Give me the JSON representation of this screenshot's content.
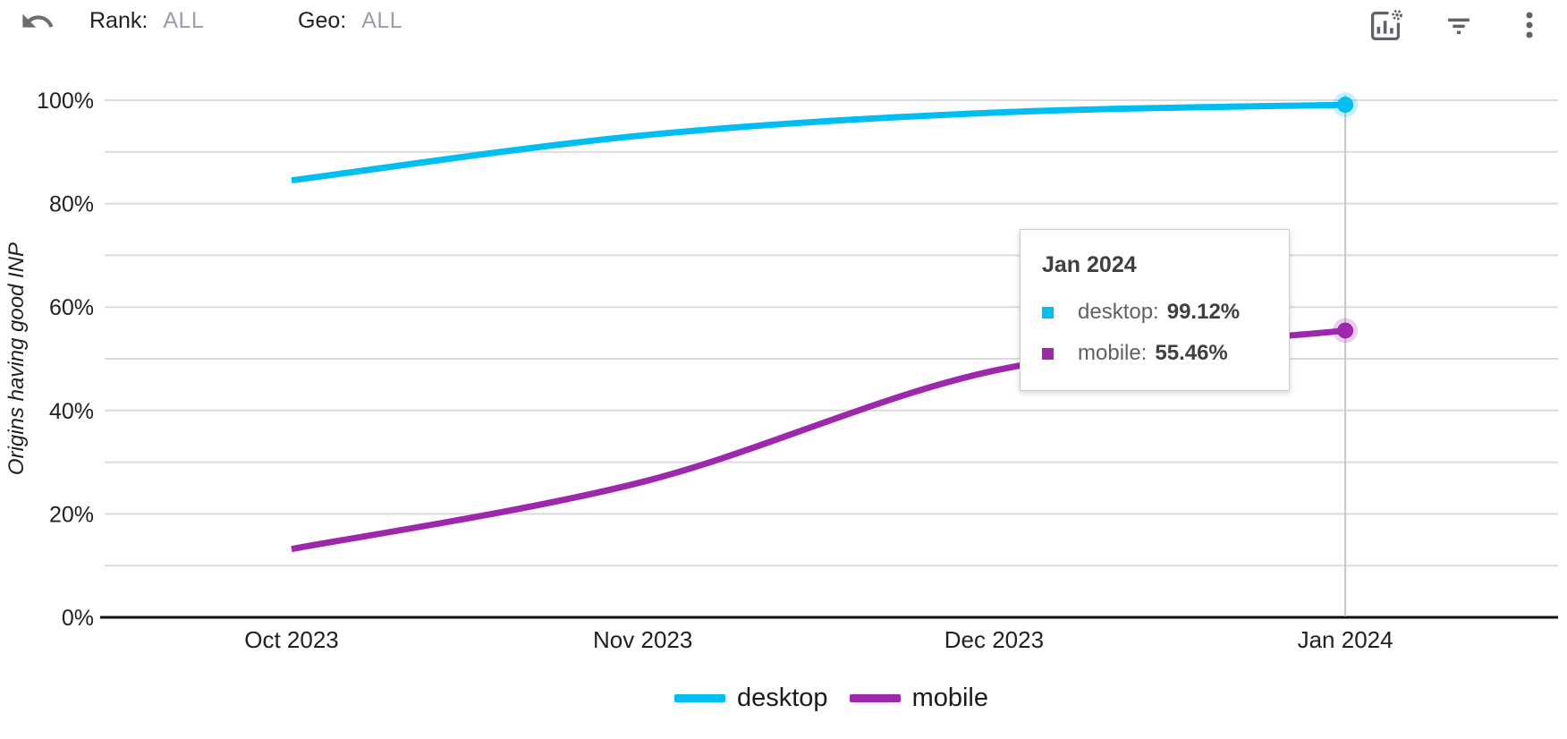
{
  "header": {
    "rank_label": "Rank:",
    "rank_value": "ALL",
    "geo_label": "Geo:",
    "geo_value": "ALL"
  },
  "tooltip": {
    "title": "Jan 2024",
    "rows": [
      {
        "series": "desktop",
        "label": "desktop:",
        "value": "99.12%",
        "color": "#00bdf2"
      },
      {
        "series": "mobile",
        "label": "mobile:",
        "value": "55.46%",
        "color": "#9e28ac"
      }
    ]
  },
  "legend": {
    "items": [
      {
        "label": "desktop",
        "color": "#00bdf2"
      },
      {
        "label": "mobile",
        "color": "#9e28ac"
      }
    ]
  },
  "chart_data": {
    "type": "line",
    "ylabel": "Origins having good INP",
    "xlabel": "",
    "categories": [
      "Oct 2023",
      "Nov 2023",
      "Dec 2023",
      "Jan 2024"
    ],
    "series": [
      {
        "name": "desktop",
        "color": "#00bdf2",
        "values": [
          84.5,
          93.2,
          97.6,
          99.12
        ]
      },
      {
        "name": "mobile",
        "color": "#9e28ac",
        "values": [
          13.2,
          26.2,
          47.7,
          55.46
        ]
      }
    ],
    "ylim": [
      0,
      100
    ],
    "yticks": [
      0,
      20,
      40,
      60,
      80,
      100
    ],
    "ytick_labels": [
      "0%",
      "20%",
      "40%",
      "60%",
      "80%",
      "100%"
    ],
    "grid_step": 10,
    "grid": true,
    "legend_position": "bottom",
    "hover": {
      "index": 3,
      "label": "Jan 2024"
    },
    "colors": {
      "gridline": "#dbdbdb",
      "axis": "#111111",
      "crosshair": "#c7c7c7",
      "tick_text": "#202124"
    }
  }
}
